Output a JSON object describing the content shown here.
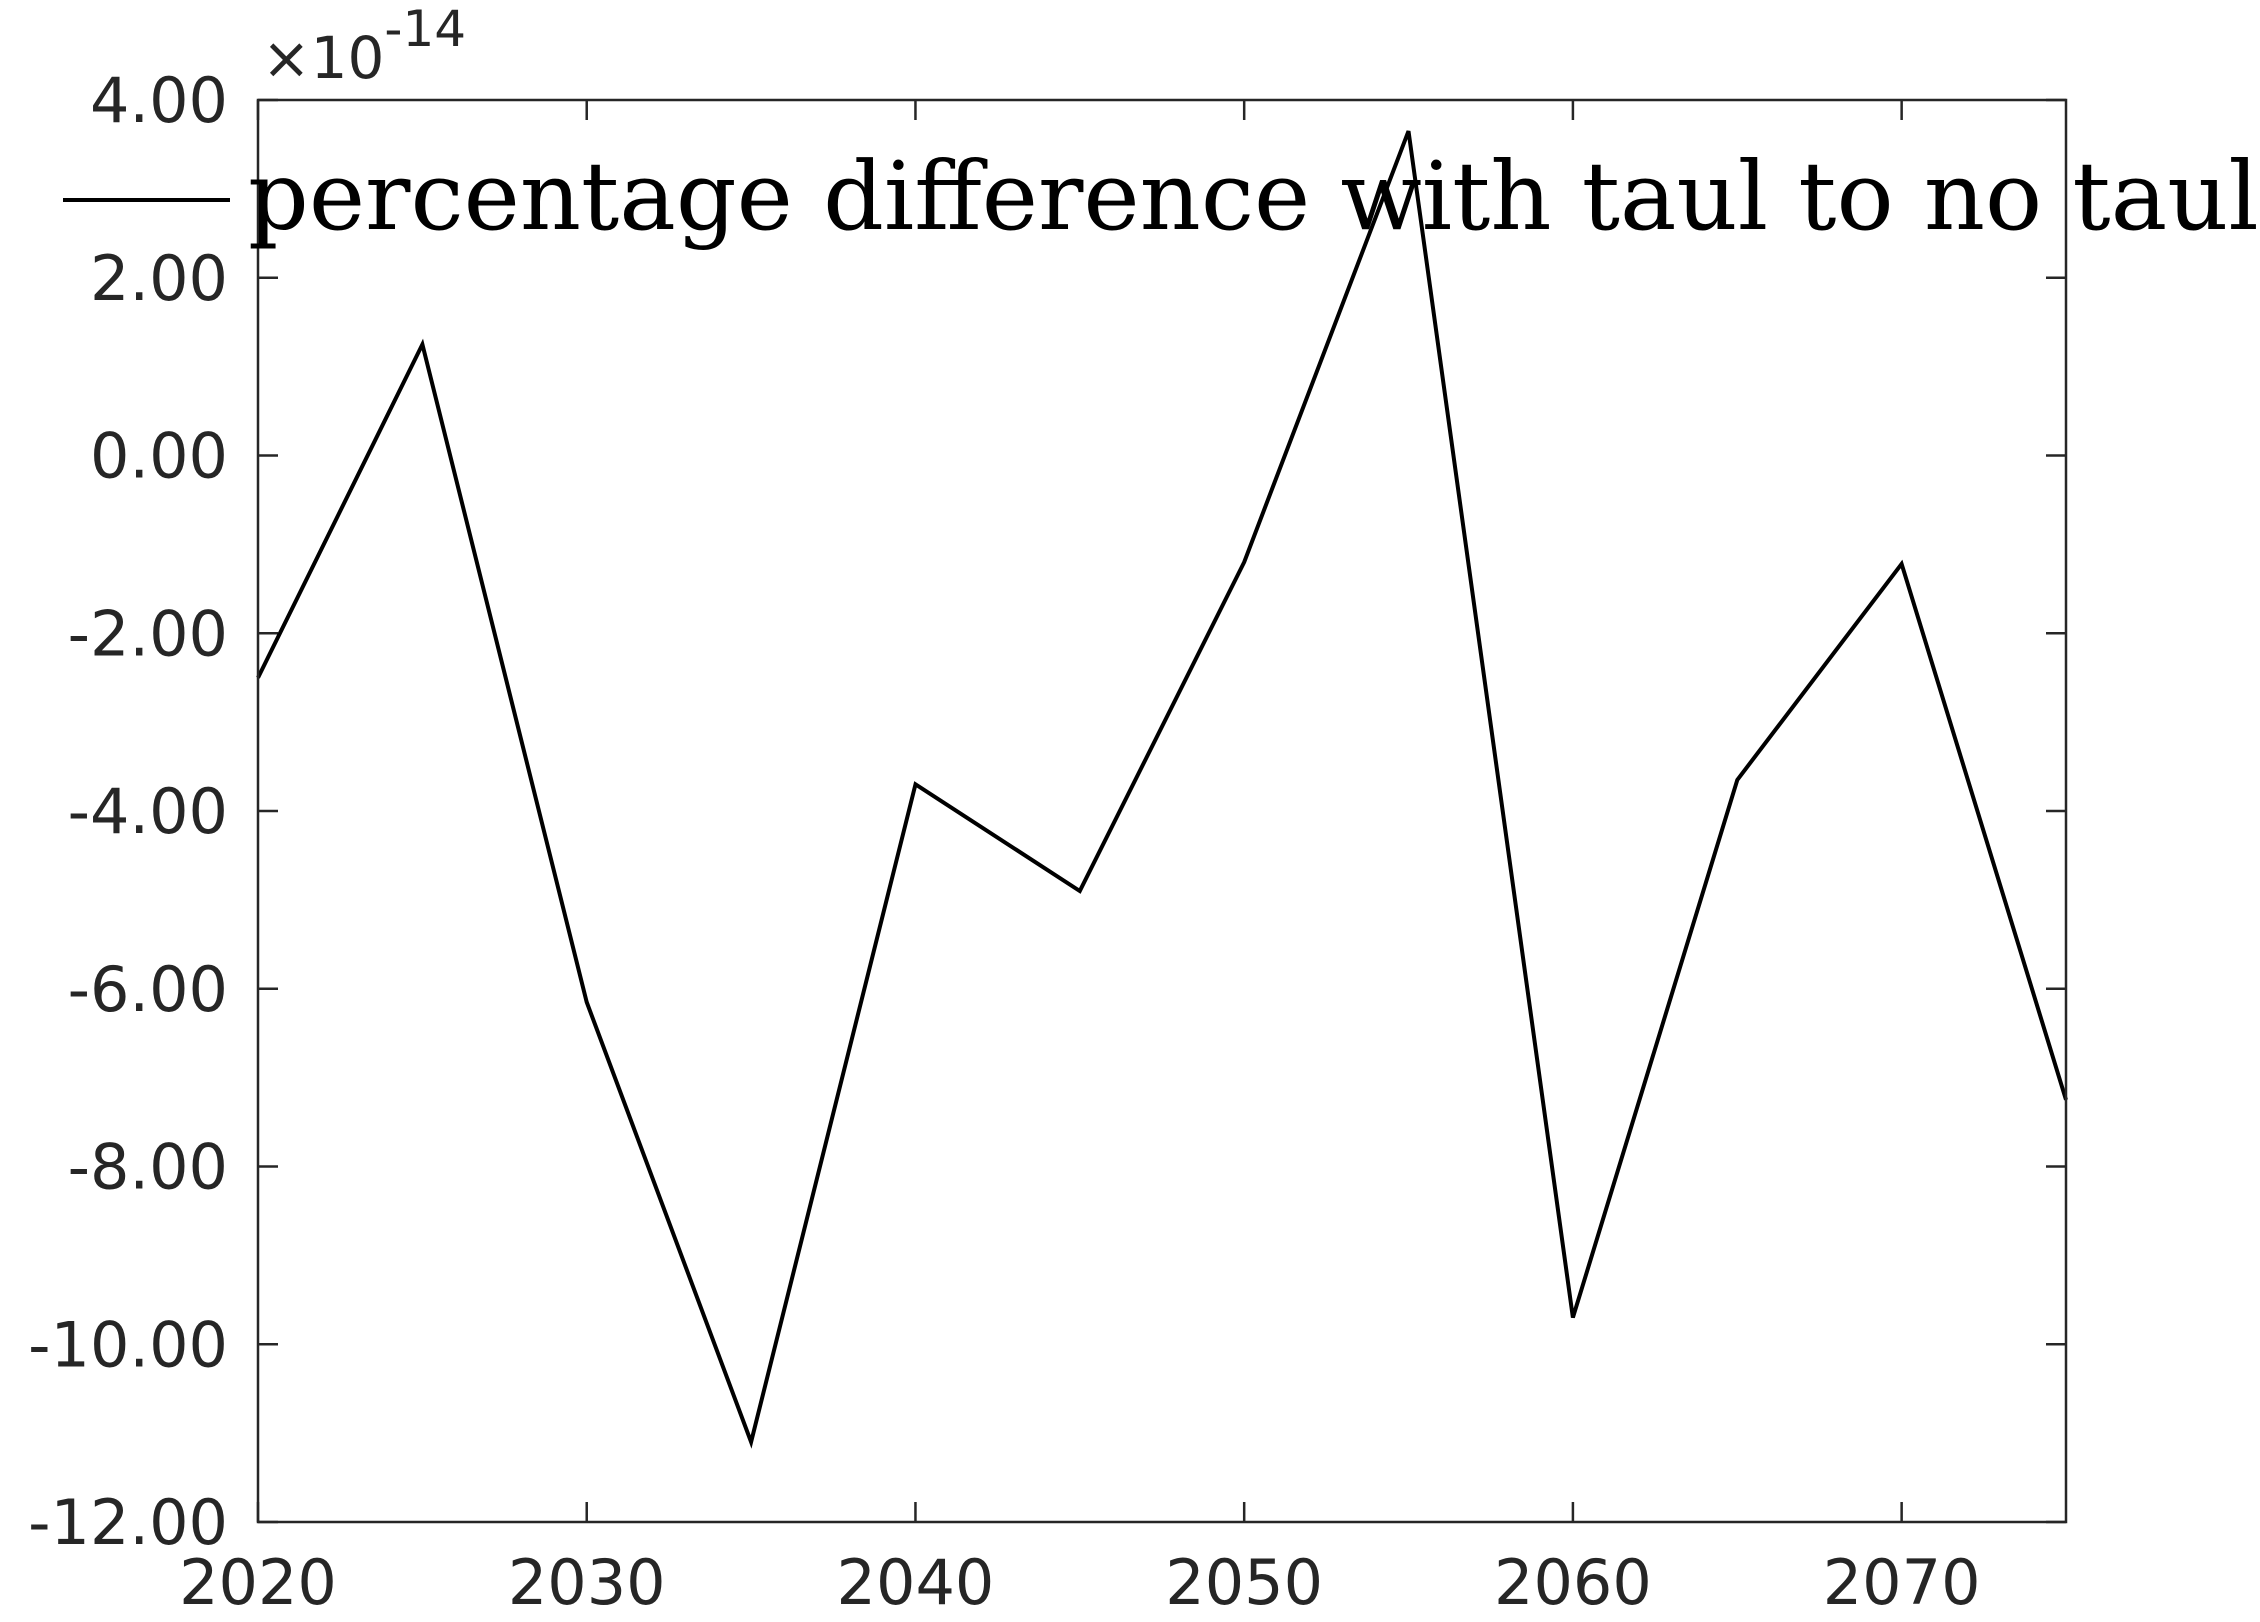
{
  "chart_data": {
    "type": "line",
    "title": "",
    "xlabel": "",
    "ylabel": "",
    "xlim": [
      2020,
      2075
    ],
    "ylim": [
      -12,
      4
    ],
    "y_exponent_text": "×10",
    "y_exponent_power": "-14",
    "x_ticks": [
      2020,
      2030,
      2040,
      2050,
      2060,
      2070
    ],
    "x_tick_labels": [
      "2020",
      "2030",
      "2040",
      "2050",
      "2060",
      "2070"
    ],
    "y_ticks": [
      4,
      2,
      0,
      -2,
      -4,
      -6,
      -8,
      -10,
      -12
    ],
    "y_tick_labels": [
      "4.00",
      "2.00",
      "0.00",
      "-2.00",
      "-4.00",
      "-6.00",
      "-8.00",
      "-10.00",
      "-12.00"
    ],
    "grid": false,
    "legend_position": "top",
    "series": [
      {
        "name": "percentage difference with taul to no taul",
        "color": "#000000",
        "x": [
          2020,
          2025,
          2030,
          2035,
          2040,
          2045,
          2050,
          2055,
          2060,
          2065,
          2070,
          2075
        ],
        "y": [
          -2.5,
          1.25,
          -6.15,
          -11.1,
          -3.7,
          -4.9,
          -1.2,
          3.65,
          -9.7,
          -3.65,
          -1.22,
          -7.25
        ]
      }
    ]
  }
}
